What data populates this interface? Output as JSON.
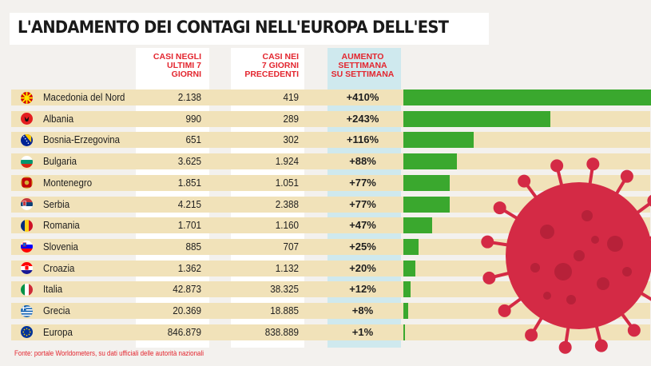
{
  "title": "L'ANDAMENTO DEI CONTAGI NELL'EUROPA DELL'EST",
  "headers": {
    "last7": [
      "CASI NEGLI",
      "ULTIMI 7",
      "GIORNI"
    ],
    "prev7": [
      "CASI NEI",
      "7 GIORNI",
      "PRECEDENTI"
    ],
    "increase": [
      "AUMENTO",
      "SETTIMANA",
      "SU SETTIMANA"
    ]
  },
  "rows": [
    {
      "country": "Macedonia del Nord",
      "flag_icon": "north-macedonia-flag-icon",
      "last7": "2.138",
      "prev7": "419",
      "increase": "+410%"
    },
    {
      "country": "Albania",
      "flag_icon": "albania-flag-icon",
      "last7": "990",
      "prev7": "289",
      "increase": "+243%"
    },
    {
      "country": "Bosnia-Erzegovina",
      "flag_icon": "bosnia-flag-icon",
      "last7": "651",
      "prev7": "302",
      "increase": "+116%"
    },
    {
      "country": "Bulgaria",
      "flag_icon": "bulgaria-flag-icon",
      "last7": "3.625",
      "prev7": "1.924",
      "increase": "+88%"
    },
    {
      "country": "Montenegro",
      "flag_icon": "montenegro-flag-icon",
      "last7": "1.851",
      "prev7": "1.051",
      "increase": "+77%"
    },
    {
      "country": "Serbia",
      "flag_icon": "serbia-flag-icon",
      "last7": "4.215",
      "prev7": "2.388",
      "increase": "+77%"
    },
    {
      "country": "Romania",
      "flag_icon": "romania-flag-icon",
      "last7": "1.701",
      "prev7": "1.160",
      "increase": "+47%"
    },
    {
      "country": "Slovenia",
      "flag_icon": "slovenia-flag-icon",
      "last7": "885",
      "prev7": "707",
      "increase": "+25%"
    },
    {
      "country": "Croazia",
      "flag_icon": "croatia-flag-icon",
      "last7": "1.362",
      "prev7": "1.132",
      "increase": "+20%"
    },
    {
      "country": "Italia",
      "flag_icon": "italy-flag-icon",
      "last7": "42.873",
      "prev7": "38.325",
      "increase": "+12%"
    },
    {
      "country": "Grecia",
      "flag_icon": "greece-flag-icon",
      "last7": "20.369",
      "prev7": "18.885",
      "increase": "+8%"
    },
    {
      "country": "Europa",
      "flag_icon": "eu-flag-icon",
      "last7": "846.879",
      "prev7": "838.889",
      "increase": "+1%"
    }
  ],
  "source": "Fonte: portale Worldometers, su dati ufficiali delle autorità nazionali",
  "colors": {
    "bar": "#3aa82e",
    "accent": "#e3262f",
    "row_band": "#f1e2b9",
    "increase_column": "#cfe9ee",
    "virus": "#d42a45"
  },
  "chart_data": {
    "type": "bar",
    "orientation": "horizontal",
    "title": "L'ANDAMENTO DEI CONTAGI NELL'EUROPA DELL'EST",
    "categories": [
      "Macedonia del Nord",
      "Albania",
      "Bosnia-Erzegovina",
      "Bulgaria",
      "Montenegro",
      "Serbia",
      "Romania",
      "Slovenia",
      "Croazia",
      "Italia",
      "Grecia",
      "Europa"
    ],
    "series": [
      {
        "name": "CASI NEGLI ULTIMI 7 GIORNI",
        "values": [
          2138,
          990,
          651,
          3625,
          1851,
          4215,
          1701,
          885,
          1362,
          42873,
          20369,
          846879
        ]
      },
      {
        "name": "CASI NEI 7 GIORNI PRECEDENTI",
        "values": [
          419,
          289,
          302,
          1924,
          1051,
          2388,
          1160,
          707,
          1132,
          38325,
          18885,
          838889
        ]
      },
      {
        "name": "AUMENTO SETTIMANA SU SETTIMANA",
        "values": [
          410,
          243,
          116,
          88,
          77,
          77,
          47,
          25,
          20,
          12,
          8,
          1
        ]
      }
    ],
    "bar_series": "AUMENTO SETTIMANA SU SETTIMANA",
    "bar_max": 410,
    "grid": false,
    "legend": "none"
  }
}
